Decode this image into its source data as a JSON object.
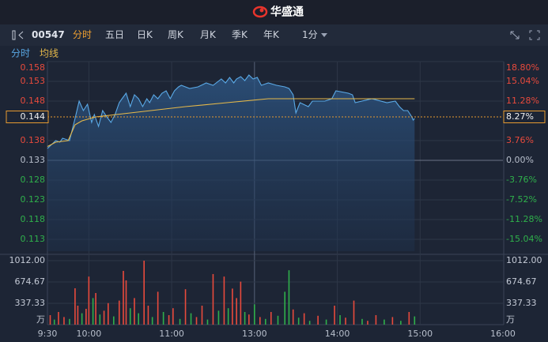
{
  "header": {
    "brand": "华盛通"
  },
  "toolbar": {
    "code": "00547",
    "tabs": [
      "分时",
      "五日",
      "日K",
      "周K",
      "月K",
      "季K",
      "年K",
      "1分"
    ]
  },
  "chart_data": [
    {
      "type": "line",
      "xlim": [
        0,
        330
      ],
      "ylim": [
        0.11,
        0.158
      ],
      "yticks": [
        0.158,
        0.153,
        0.148,
        0.138,
        0.133,
        0.128,
        0.123,
        0.118,
        0.113
      ],
      "y2lim": [
        -17.29,
        18.8
      ],
      "y2ticks": [
        {
          "value": 18.8,
          "label": "18.80%"
        },
        {
          "value": 15.04,
          "label": "15.04%"
        },
        {
          "value": 11.28,
          "label": "11.28%"
        },
        {
          "value": 3.76,
          "label": "3.76%"
        },
        {
          "value": 0,
          "label": "0.00%"
        },
        {
          "value": -3.76,
          "label": "-3.76%"
        },
        {
          "value": -7.52,
          "label": "-7.52%"
        },
        {
          "value": -11.28,
          "label": "-11.28%"
        },
        {
          "value": -15.04,
          "label": "-15.04%"
        }
      ],
      "up_color": "#e84a3c",
      "down_color": "#2fb04b",
      "flat_color": "#b8bfcc",
      "grid": true,
      "last_price": 0.144,
      "last_change": {
        "value": 8.27,
        "label": "8.27%"
      },
      "series": [
        {
          "name": "分时",
          "color": "#5aa9e6",
          "x": [
            0,
            3,
            6,
            9,
            11,
            16,
            20,
            23,
            26,
            29,
            32,
            34,
            37,
            40,
            43,
            46,
            49,
            52,
            54,
            57,
            60,
            63,
            66,
            69,
            72,
            74,
            77,
            80,
            83,
            86,
            89,
            92,
            95,
            97,
            103,
            109,
            115,
            120,
            126,
            129,
            132,
            135,
            137,
            140,
            143,
            146,
            149,
            152,
            155,
            160,
            166,
            172,
            175,
            178,
            180,
            183,
            189,
            192,
            201,
            206,
            209,
            218,
            221,
            223,
            235,
            246,
            252,
            255,
            258,
            261,
            264,
            265,
            266
          ],
          "values": [
            0.136,
            0.137,
            0.138,
            0.1376,
            0.1386,
            0.138,
            0.1436,
            0.148,
            0.1456,
            0.1472,
            0.1426,
            0.1446,
            0.1416,
            0.1456,
            0.144,
            0.1426,
            0.1446,
            0.1476,
            0.1486,
            0.15,
            0.1466,
            0.1496,
            0.1486,
            0.1466,
            0.1486,
            0.1476,
            0.1496,
            0.1486,
            0.15,
            0.1506,
            0.1486,
            0.1506,
            0.1516,
            0.152,
            0.1512,
            0.1516,
            0.1526,
            0.152,
            0.1536,
            0.1526,
            0.154,
            0.1526,
            0.1536,
            0.1542,
            0.1532,
            0.1546,
            0.1536,
            0.154,
            0.152,
            0.1526,
            0.152,
            0.1516,
            0.1512,
            0.1496,
            0.145,
            0.1476,
            0.1466,
            0.148,
            0.148,
            0.1486,
            0.1506,
            0.15,
            0.1496,
            0.1476,
            0.1486,
            0.1476,
            0.148,
            0.1466,
            0.1456,
            0.1456,
            0.144,
            0.1432,
            0.1436
          ]
        },
        {
          "name": "均线",
          "color": "#e6b94a",
          "x": [
            0,
            6,
            15,
            20,
            25,
            35,
            60,
            100,
            130,
            160,
            200,
            266
          ],
          "values": [
            0.1365,
            0.1376,
            0.138,
            0.142,
            0.143,
            0.144,
            0.145,
            0.1466,
            0.1476,
            0.1486,
            0.1486,
            0.1486
          ]
        }
      ]
    },
    {
      "type": "bar",
      "xlim": [
        0,
        330
      ],
      "xticks": [
        {
          "value": 0,
          "label": "9:30"
        },
        {
          "value": 30,
          "label": "10:00"
        },
        {
          "value": 90,
          "label": "11:00"
        },
        {
          "value": 150,
          "label": "13:00"
        },
        {
          "value": 210,
          "label": "14:00"
        },
        {
          "value": 270,
          "label": "15:00"
        },
        {
          "value": 330,
          "label": "16:00"
        }
      ],
      "ylim": [
        0,
        1012
      ],
      "yticks": [
        {
          "value": 1012,
          "label": "1012.00"
        },
        {
          "value": 674.67,
          "label": "674.67"
        },
        {
          "value": 337.33,
          "label": "337.33"
        }
      ],
      "ylabel": "万",
      "x": [
        2,
        5,
        8,
        12,
        16,
        20,
        22,
        25,
        28,
        30,
        33,
        35,
        38,
        41,
        44,
        48,
        52,
        55,
        57,
        60,
        63,
        66,
        70,
        73,
        76,
        80,
        84,
        88,
        91,
        96,
        100,
        104,
        108,
        112,
        116,
        120,
        124,
        128,
        131,
        134,
        137,
        140,
        143,
        146,
        150,
        154,
        158,
        162,
        167,
        172,
        175,
        178,
        182,
        186,
        190,
        196,
        202,
        208,
        212,
        216,
        222,
        228,
        232,
        238,
        244,
        250,
        256,
        262,
        266
      ],
      "values": [
        150,
        80,
        200,
        120,
        90,
        575,
        300,
        180,
        250,
        760,
        420,
        500,
        160,
        220,
        340,
        130,
        380,
        850,
        700,
        260,
        420,
        180,
        1012,
        300,
        120,
        520,
        200,
        150,
        260,
        90,
        560,
        180,
        120,
        300,
        80,
        800,
        220,
        760,
        260,
        570,
        420,
        680,
        200,
        160,
        320,
        120,
        90,
        200,
        140,
        520,
        860,
        240,
        110,
        180,
        60,
        140,
        80,
        300,
        150,
        110,
        380,
        90,
        60,
        150,
        80,
        120,
        60,
        200,
        130
      ],
      "colors": [
        "#e84a3c",
        "#2fb04b",
        "#e84a3c",
        "#e84a3c",
        "#2fb04b",
        "#e84a3c",
        "#e84a3c",
        "#2fb04b",
        "#e84a3c",
        "#e84a3c",
        "#2fb04b",
        "#e84a3c",
        "#2fb04b",
        "#e84a3c",
        "#e84a3c",
        "#2fb04b",
        "#e84a3c",
        "#e84a3c",
        "#e84a3c",
        "#2fb04b",
        "#e84a3c",
        "#2fb04b",
        "#e84a3c",
        "#e84a3c",
        "#2fb04b",
        "#e84a3c",
        "#2fb04b",
        "#e84a3c",
        "#e84a3c",
        "#2fb04b",
        "#e84a3c",
        "#2fb04b",
        "#e84a3c",
        "#e84a3c",
        "#2fb04b",
        "#e84a3c",
        "#2fb04b",
        "#e84a3c",
        "#2fb04b",
        "#e84a3c",
        "#e84a3c",
        "#e84a3c",
        "#2fb04b",
        "#e84a3c",
        "#2fb04b",
        "#e84a3c",
        "#2fb04b",
        "#e84a3c",
        "#2fb04b",
        "#2fb04b",
        "#2fb04b",
        "#e84a3c",
        "#2fb04b",
        "#e84a3c",
        "#2fb04b",
        "#e84a3c",
        "#2fb04b",
        "#e84a3c",
        "#2fb04b",
        "#e84a3c",
        "#e84a3c",
        "#2fb04b",
        "#e84a3c",
        "#e84a3c",
        "#2fb04b",
        "#e84a3c",
        "#2fb04b",
        "#e84a3c",
        "#2fb04b"
      ]
    }
  ]
}
